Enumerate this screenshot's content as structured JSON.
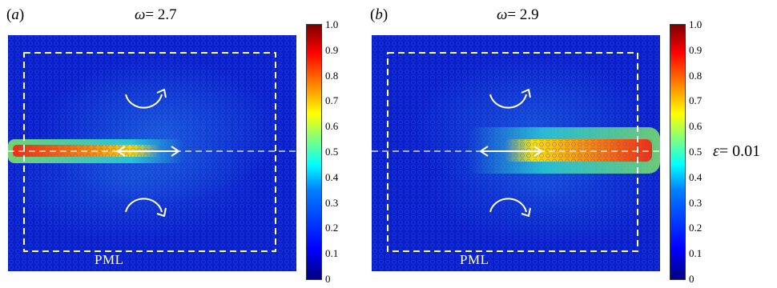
{
  "panels": [
    {
      "label_letter": "a",
      "omega_symbol": "ω",
      "omega_value": "= 2.7",
      "pml_label": "PML"
    },
    {
      "label_letter": "b",
      "omega_symbol": "ω",
      "omega_value": "= 2.9",
      "pml_label": "PML"
    }
  ],
  "colorbar": {
    "ticks": [
      "1.0",
      "0.9",
      "0.8",
      "0.7",
      "0.6",
      "0.5",
      "0.4",
      "0.3",
      "0.2",
      "0.1",
      "0"
    ],
    "colors": [
      "#00007f",
      "#0000ff",
      "#007fff",
      "#00ffff",
      "#7fff7f",
      "#ffff00",
      "#ff7f00",
      "#ff0000",
      "#7f0000"
    ]
  },
  "epsilon": {
    "symbol": "ε",
    "value": "= 0.01"
  }
}
